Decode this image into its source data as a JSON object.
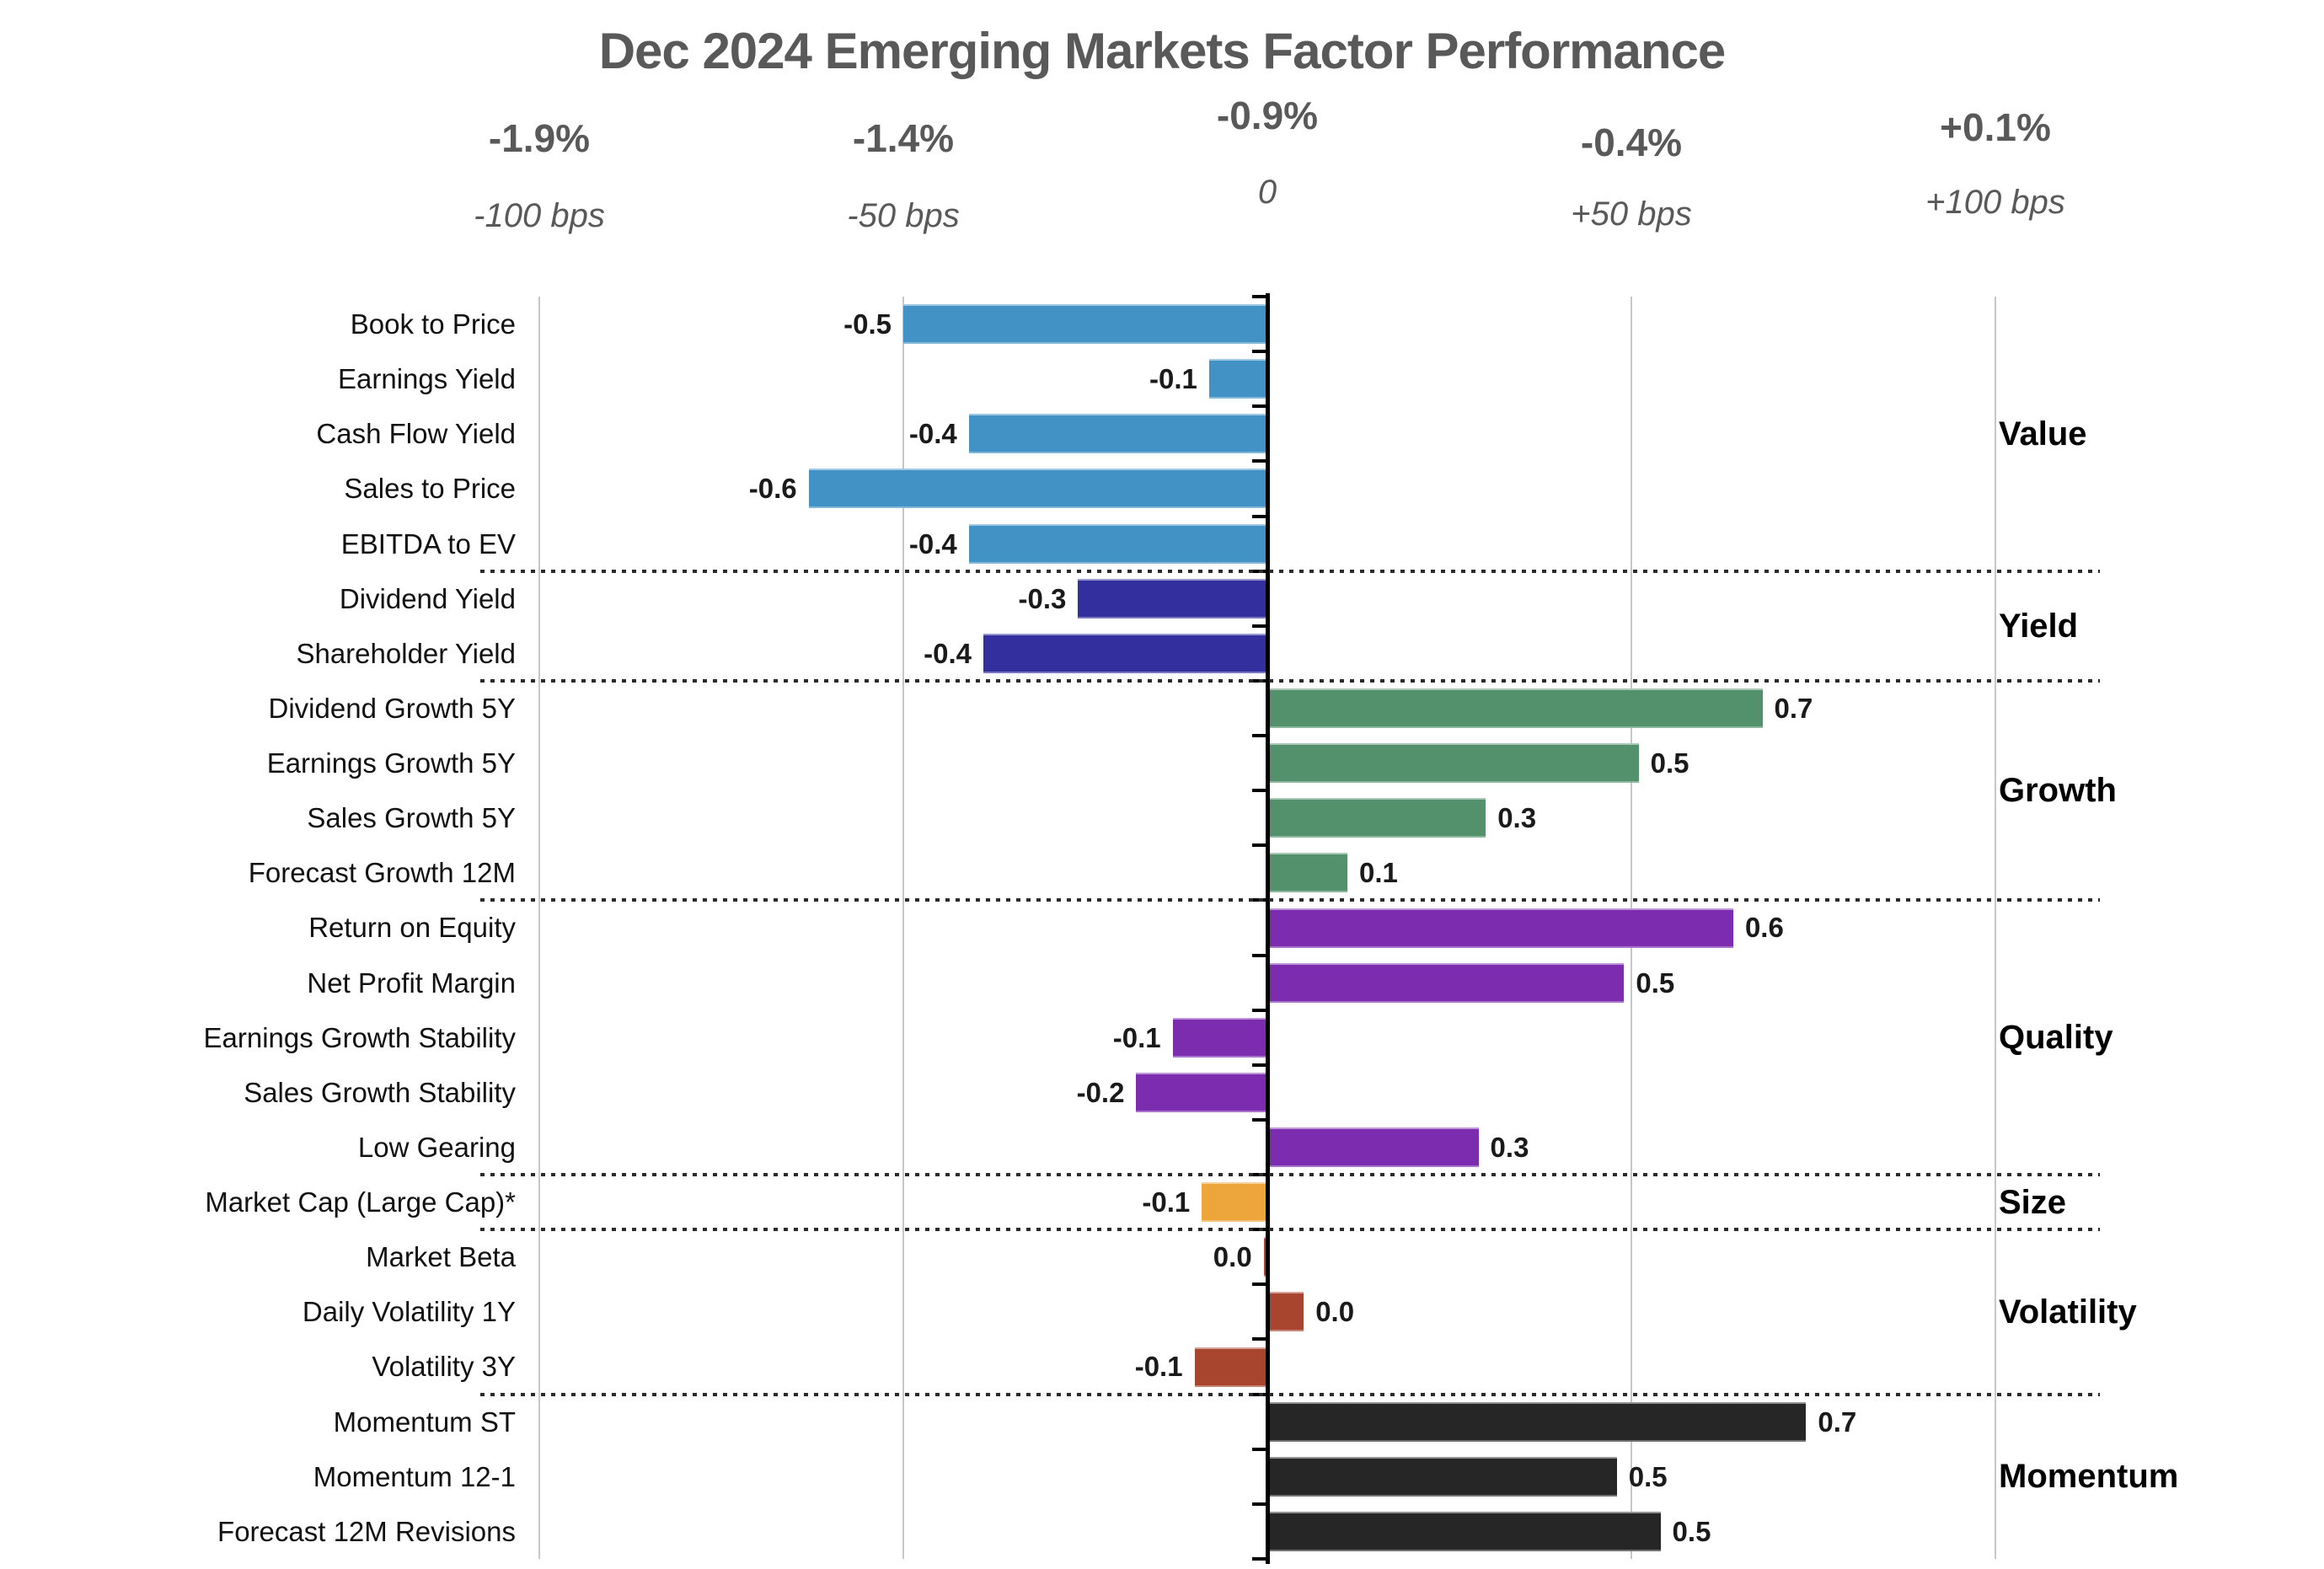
{
  "title": "Dec 2024 Emerging Markets Factor Performance",
  "axis_ticks": [
    {
      "pct": "-1.9%",
      "bps": "-100 bps"
    },
    {
      "pct": "-1.4%",
      "bps": "-50 bps"
    },
    {
      "pct": "-0.9%",
      "bps": "0"
    },
    {
      "pct": "-0.4%",
      "bps": "+50 bps"
    },
    {
      "pct": "+0.1%",
      "bps": "+100 bps"
    }
  ],
  "colors": {
    "title_gray": "#595959",
    "gridline": "#c6c6c6",
    "baseline": "#000000",
    "value_blue": "#4292C6",
    "yield_navy": "#332F9E",
    "growth_green": "#52916C",
    "quality_purple": "#7C2CAE",
    "size_orange": "#EDA63C",
    "volatility_rust": "#A8452F",
    "momentum_black": "#262626"
  },
  "chart_data": {
    "type": "bar",
    "orientation": "horizontal",
    "title": "Dec 2024 Emerging Markets Factor Performance",
    "xlabel_top_pct": [
      "-1.9%",
      "-1.4%",
      "-0.9%",
      "-0.4%",
      "+0.1%"
    ],
    "xlabel_top_bps": [
      "-100 bps",
      "-50 bps",
      "0",
      "+50 bps",
      "+100 bps"
    ],
    "zero_baseline_at_pct": "-0.9%",
    "bar_axis_range_bps": [
      -100,
      100
    ],
    "grid": true,
    "groups": [
      {
        "name": "Value",
        "color": "#4292C6",
        "factors": [
          {
            "label": "Book to Price",
            "display": "-0.5",
            "value": -0.5,
            "bar_len": -0.5
          },
          {
            "label": "Earnings Yield",
            "display": "-0.1",
            "value": -0.1,
            "bar_len": -0.08
          },
          {
            "label": "Cash Flow Yield",
            "display": "-0.4",
            "value": -0.4,
            "bar_len": -0.41
          },
          {
            "label": "Sales to Price",
            "display": "-0.6",
            "value": -0.6,
            "bar_len": -0.63
          },
          {
            "label": "EBITDA to EV",
            "display": "-0.4",
            "value": -0.4,
            "bar_len": -0.41
          }
        ]
      },
      {
        "name": "Yield",
        "color": "#332F9E",
        "factors": [
          {
            "label": "Dividend Yield",
            "display": "-0.3",
            "value": -0.3,
            "bar_len": -0.26
          },
          {
            "label": "Shareholder Yield",
            "display": "-0.4",
            "value": -0.4,
            "bar_len": -0.39
          }
        ]
      },
      {
        "name": "Growth",
        "color": "#52916C",
        "factors": [
          {
            "label": "Dividend Growth 5Y",
            "display": "0.7",
            "value": 0.7,
            "bar_len": 0.68
          },
          {
            "label": "Earnings Growth 5Y",
            "display": "0.5",
            "value": 0.5,
            "bar_len": 0.51
          },
          {
            "label": "Sales Growth 5Y",
            "display": "0.3",
            "value": 0.3,
            "bar_len": 0.3
          },
          {
            "label": "Forecast Growth 12M",
            "display": "0.1",
            "value": 0.1,
            "bar_len": 0.11
          }
        ]
      },
      {
        "name": "Quality",
        "color": "#7C2CAE",
        "factors": [
          {
            "label": "Return on Equity",
            "display": "0.6",
            "value": 0.6,
            "bar_len": 0.64
          },
          {
            "label": "Net Profit Margin",
            "display": "0.5",
            "value": 0.5,
            "bar_len": 0.49
          },
          {
            "label": "Earnings Growth Stability",
            "display": "-0.1",
            "value": -0.1,
            "bar_len": -0.13
          },
          {
            "label": "Sales Growth Stability",
            "display": "-0.2",
            "value": -0.2,
            "bar_len": -0.18
          },
          {
            "label": "Low Gearing",
            "display": "0.3",
            "value": 0.3,
            "bar_len": 0.29
          }
        ]
      },
      {
        "name": "Size",
        "color": "#EDA63C",
        "factors": [
          {
            "label": "Market Cap (Large Cap)*",
            "display": "-0.1",
            "value": -0.1,
            "bar_len": -0.09
          }
        ]
      },
      {
        "name": "Volatility",
        "color": "#A8452F",
        "factors": [
          {
            "label": "Market Beta",
            "display": "0.0",
            "value": 0.0,
            "bar_len": -0.005
          },
          {
            "label": "Daily Volatility 1Y",
            "display": "0.0",
            "value": 0.0,
            "bar_len": 0.05
          },
          {
            "label": "Volatility 3Y",
            "display": "-0.1",
            "value": -0.1,
            "bar_len": -0.1
          }
        ]
      },
      {
        "name": "Momentum",
        "color": "#262626",
        "factors": [
          {
            "label": "Momentum ST",
            "display": "0.7",
            "value": 0.7,
            "bar_len": 0.74
          },
          {
            "label": "Momentum 12-1",
            "display": "0.5",
            "value": 0.5,
            "bar_len": 0.48
          },
          {
            "label": "Forecast 12M Revisions",
            "display": "0.5",
            "value": 0.5,
            "bar_len": 0.54
          }
        ]
      }
    ]
  }
}
